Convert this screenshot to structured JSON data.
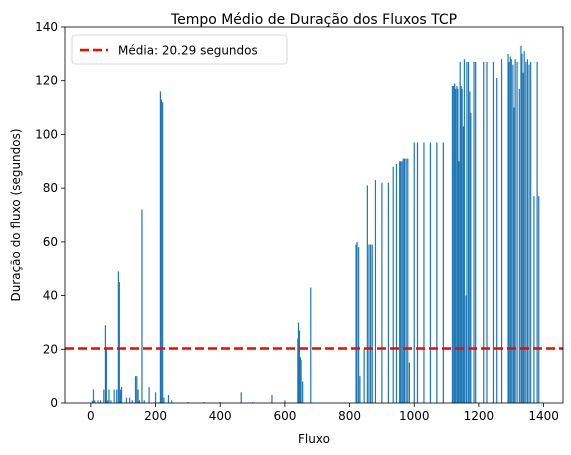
{
  "chart_data": {
    "type": "bar",
    "title": "Tempo Médio de Duração dos Fluxos TCP",
    "xlabel": "Fluxo",
    "ylabel": "Duração do fluxo (segundos)",
    "xlim": [
      -80,
      1460
    ],
    "ylim": [
      0,
      140
    ],
    "xticks": [
      0,
      200,
      400,
      600,
      800,
      1000,
      1200,
      1400
    ],
    "yticks": [
      0,
      20,
      40,
      60,
      80,
      100,
      120,
      140
    ],
    "bar_color": "#1f77b4",
    "reference_line": {
      "y": 20.29,
      "color": "#ff0000",
      "style": "dashed",
      "label": "Média: 20.29 segundos"
    },
    "legend_position": "top-left",
    "series": [
      {
        "x": [
          5,
          8,
          12,
          22,
          30,
          40,
          45,
          48,
          52,
          56,
          62,
          72,
          80,
          85,
          88,
          92,
          95,
          110,
          120,
          128,
          138,
          142,
          146,
          150,
          158,
          165,
          180,
          200,
          215,
          218,
          222,
          226,
          240,
          250,
          300,
          350,
          400,
          465,
          500,
          560,
          600,
          640,
          642,
          645,
          648,
          650,
          655,
          680,
          820,
          823,
          828,
          832,
          845,
          855,
          860,
          865,
          870,
          880,
          900,
          920,
          935,
          945,
          955,
          958,
          962,
          966,
          970,
          975,
          980,
          985,
          1000,
          1010,
          1030,
          1050,
          1070,
          1090,
          1118,
          1122,
          1125,
          1128,
          1132,
          1135,
          1138,
          1142,
          1145,
          1148,
          1152,
          1155,
          1160,
          1163,
          1168,
          1172,
          1175,
          1185,
          1190,
          1215,
          1225,
          1245,
          1255,
          1270,
          1290,
          1293,
          1297,
          1300,
          1305,
          1308,
          1312,
          1318,
          1325,
          1330,
          1333,
          1337,
          1340,
          1345,
          1350,
          1355,
          1360,
          1370,
          1380,
          1385
        ],
        "values": [
          0.8,
          5,
          1,
          1,
          1,
          5,
          29,
          20,
          1,
          5,
          1,
          5,
          5,
          49,
          45,
          5,
          6,
          2,
          2,
          1,
          10,
          10,
          5,
          1,
          72,
          1,
          6,
          4,
          116,
          113,
          112,
          2,
          3,
          1,
          0.3,
          0.3,
          0.3,
          4,
          0.3,
          3,
          1,
          24,
          30,
          27,
          17,
          16,
          8,
          43,
          59,
          60,
          58,
          10,
          20,
          81,
          59,
          59,
          59,
          83,
          82,
          82,
          88,
          89,
          90,
          90,
          90,
          91,
          91,
          91,
          91,
          15,
          97,
          97,
          97,
          97,
          97,
          97,
          118,
          118,
          119,
          117,
          118,
          117,
          90,
          127,
          118,
          117,
          103,
          128,
          40,
          127,
          127,
          116,
          108,
          127,
          127,
          127,
          127,
          127,
          121,
          128,
          130,
          127,
          129,
          128,
          126,
          110,
          128,
          127,
          117,
          133,
          130,
          123,
          131,
          127,
          128,
          126,
          127,
          77,
          127,
          77
        ]
      }
    ]
  }
}
